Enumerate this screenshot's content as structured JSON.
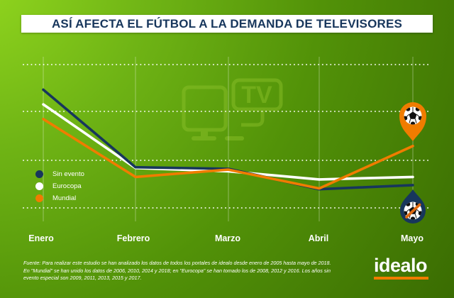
{
  "title": {
    "text": "ASÍ AFECTA EL FÚTBOL A LA DEMANDA DE TELEVISORES"
  },
  "colors": {
    "title_navy": "#17365c",
    "navy": "#17365c",
    "orange": "#f07c00",
    "white": "#ffffff",
    "background_light": "#93d81f",
    "background_dark": "#3a6c02",
    "watermark_green": "#8fc32c"
  },
  "chart_data": {
    "type": "line",
    "title": "ASÍ AFECTA EL FÚTBOL A LA DEMANDA DE TELEVISORES",
    "categories": [
      "Enero",
      "Febrero",
      "Marzo",
      "Abril",
      "Mayo"
    ],
    "series": [
      {
        "name": "Sin evento",
        "color": "#17365c",
        "values": [
          82,
          34.5,
          33.5,
          21,
          23.5
        ]
      },
      {
        "name": "Eurocopa",
        "color": "#ffffff",
        "values": [
          73,
          34,
          32,
          27,
          28.5
        ]
      },
      {
        "name": "Mundial",
        "color": "#f07c00",
        "values": [
          64,
          28.5,
          33,
          21.5,
          47.5
        ]
      }
    ],
    "xlabel": "",
    "ylabel": "",
    "ylim": [
      0,
      100
    ],
    "y_axis": "hidden (relative TV demand index, no tick labels shown)",
    "legend_position": "middle-left",
    "grid": "horizontal white dotted lines + faint vertical month lines",
    "annotations": [
      {
        "at": "Mayo / Mundial",
        "icon": "soccer-ball-pin",
        "color": "#f07c00"
      },
      {
        "at": "Mayo / Sin evento",
        "icon": "no-football-drop",
        "color": "#17365c"
      }
    ]
  },
  "legend": {
    "items": [
      {
        "label": "Sin evento",
        "color": "#17365c"
      },
      {
        "label": "Eurocopa",
        "color": "#ffffff"
      },
      {
        "label": "Mundial",
        "color": "#f07c00"
      }
    ]
  },
  "watermark": {
    "text": "TV"
  },
  "footer": {
    "lines": [
      "Fuente: Para realizar este estudio se han analizado los datos de todos los portales de idealo desde enero de 2005 hasta mayo de 2018.",
      "En \"Mundial\" se han unido los datos de 2006, 2010, 2014 y 2018; en \"Eurocopa\" se han tomado los de 2008, 2012 y 2016. Los años sin",
      "evento especial son 2009, 2011, 2013, 2015 y 2017."
    ]
  },
  "logo": {
    "text": "idealo"
  }
}
